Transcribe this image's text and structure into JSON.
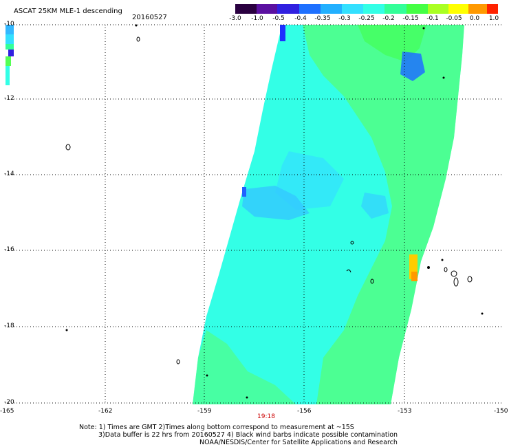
{
  "title": "ASCAT 25KM MLE-1 descending",
  "date": "20160527",
  "lat_labels": [
    "-10",
    "-12",
    "-14",
    "-16",
    "-18",
    "-20"
  ],
  "lon_labels": [
    "-165",
    "-162",
    "-159",
    "-156",
    "-153",
    "-150"
  ],
  "time_label": "19:18",
  "colorbar": {
    "labels": [
      "-3.0",
      "-1.0",
      "-0.5",
      "-0.4",
      "-0.35",
      "-0.3",
      "-0.25",
      "-0.2",
      "-0.15",
      "-0.1",
      "-0.05",
      "0.0",
      "1.0"
    ],
    "colors": [
      "#2a0040",
      "#5a10a0",
      "#3020e0",
      "#1e70ff",
      "#22b0ff",
      "#33e0ff",
      "#33ffe6",
      "#33ff99",
      "#44ff44",
      "#aaff22",
      "#ffff00",
      "#ff9900",
      "#ff2200"
    ]
  },
  "notes": {
    "line1": "Note: 1) Times are GMT 2)Times along bottom correspond to measurement at ~15S",
    "line2": "3)Data buffer is 22 hrs from 20160527 4) Black wind barbs indicate possible contamination",
    "line3": "NOAA/NESDIS/Center for Satellite Applications and Research"
  },
  "colors": {
    "swath_base": "#33ffe6",
    "swath_green": "#55ff55",
    "swath_blue": "#3ab8ff",
    "time_label": "#cc0000"
  }
}
